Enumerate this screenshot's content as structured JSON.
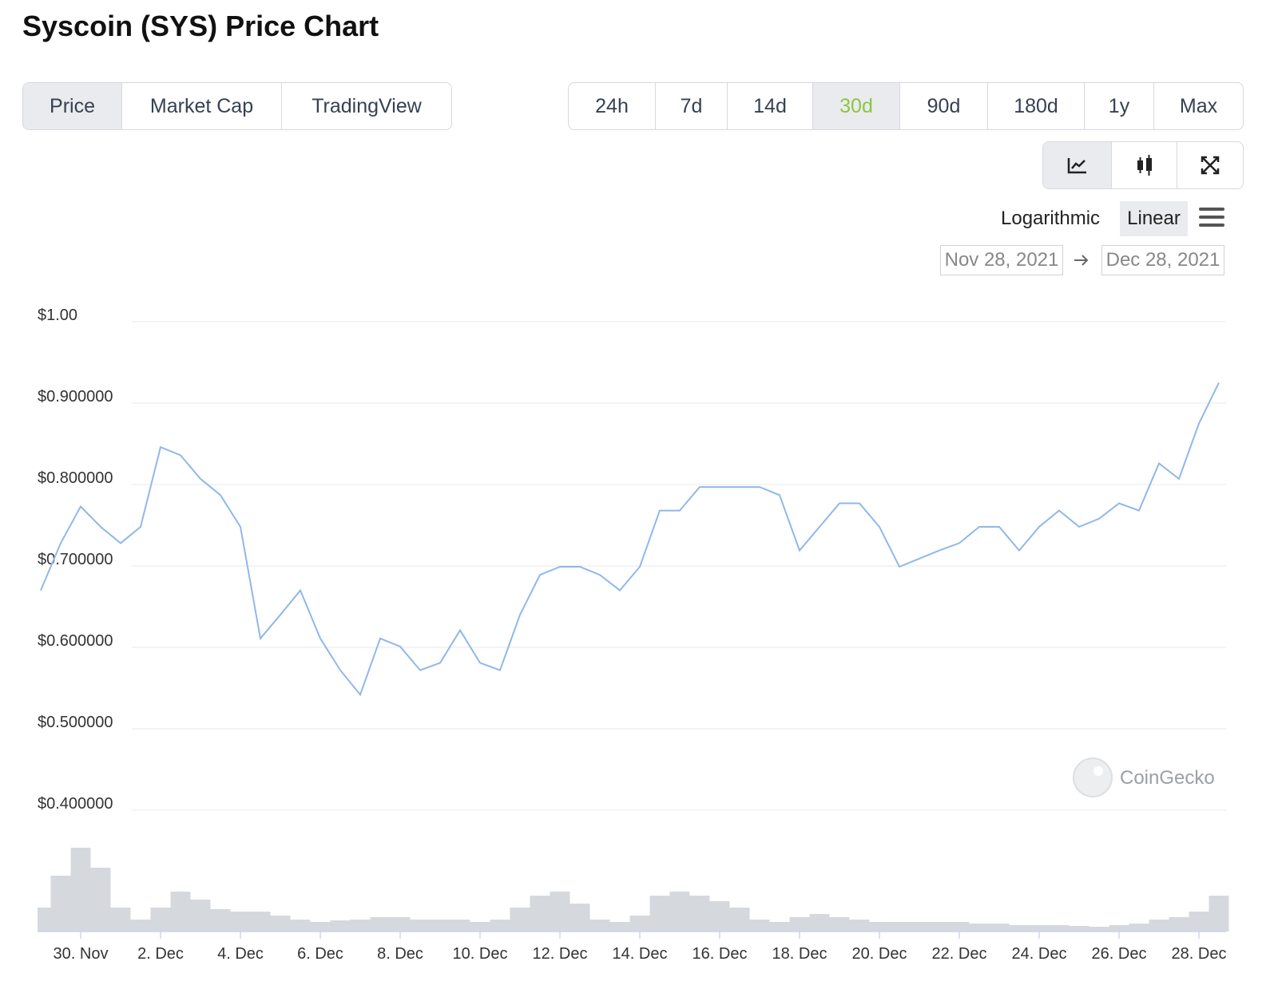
{
  "header": {
    "title": "Syscoin (SYS) Price Chart"
  },
  "tabs": [
    "Price",
    "Market Cap",
    "TradingView"
  ],
  "ranges": [
    "24h",
    "7d",
    "14d",
    "30d",
    "90d",
    "180d",
    "1y",
    "Max"
  ],
  "scale_options": [
    "Logarithmic",
    "Linear"
  ],
  "date_range": {
    "from": "Nov 28, 2021",
    "to": "Dec 28, 2021"
  },
  "watermark": "CoinGecko",
  "chart_data": [
    {
      "type": "line",
      "categories": [
        null,
        null,
        "30. Nov",
        null,
        null,
        null,
        "2. Dec",
        null,
        null,
        null,
        "4. Dec",
        null,
        null,
        null,
        "6. Dec",
        null,
        null,
        null,
        "8. Dec",
        null,
        null,
        null,
        "10. Dec",
        null,
        null,
        null,
        "12. Dec",
        null,
        null,
        null,
        "14. Dec",
        null,
        null,
        null,
        "16. Dec",
        null,
        null,
        null,
        "18. Dec",
        null,
        null,
        null,
        "20. Dec",
        null,
        null,
        null,
        "22. Dec",
        null,
        null,
        null,
        "24. Dec",
        null,
        null,
        null,
        "26. Dec",
        null,
        null,
        null,
        "28. Dec",
        null
      ],
      "values": [
        0.67,
        0.728,
        0.773,
        0.748,
        0.728,
        0.748,
        0.846,
        0.836,
        0.807,
        0.787,
        0.748,
        0.611,
        0.64,
        0.67,
        0.611,
        0.572,
        0.542,
        0.611,
        0.601,
        0.572,
        0.581,
        0.621,
        0.581,
        0.572,
        0.64,
        0.689,
        0.699,
        0.699,
        0.689,
        0.67,
        0.699,
        0.768,
        0.768,
        0.797,
        0.797,
        0.797,
        0.797,
        0.787,
        0.719,
        0.748,
        0.777,
        0.777,
        0.748,
        0.699,
        0.709,
        0.719,
        0.728,
        0.748,
        0.748,
        0.719,
        0.748,
        0.768,
        0.748,
        0.758,
        0.777,
        0.768,
        0.826,
        0.807,
        0.875,
        0.925
      ],
      "color": "#8fb8ea",
      "ylim": [
        0.4,
        1.0
      ],
      "yticks": [
        {
          "value": 0.4,
          "label": "$0.400000"
        },
        {
          "value": 0.5,
          "label": "$0.500000"
        },
        {
          "value": 0.6,
          "label": "$0.600000"
        },
        {
          "value": 0.7,
          "label": "$0.700000"
        },
        {
          "value": 0.8,
          "label": "$0.800000"
        },
        {
          "value": 0.9,
          "label": "$0.900000"
        },
        {
          "value": 1.0,
          "label": "$1.00"
        }
      ],
      "grid": true
    },
    {
      "type": "area",
      "values": [
        30,
        70,
        105,
        80,
        30,
        15,
        30,
        50,
        40,
        28,
        25,
        25,
        20,
        15,
        12,
        14,
        15,
        18,
        18,
        15,
        15,
        15,
        12,
        15,
        30,
        45,
        50,
        35,
        15,
        12,
        20,
        45,
        50,
        45,
        38,
        30,
        15,
        12,
        18,
        22,
        18,
        15,
        12,
        12,
        12,
        12,
        12,
        10,
        10,
        8,
        8,
        8,
        7,
        6,
        8,
        10,
        15,
        18,
        25,
        45
      ],
      "color": "#d5d8dc",
      "ylim": [
        0,
        120
      ]
    }
  ]
}
